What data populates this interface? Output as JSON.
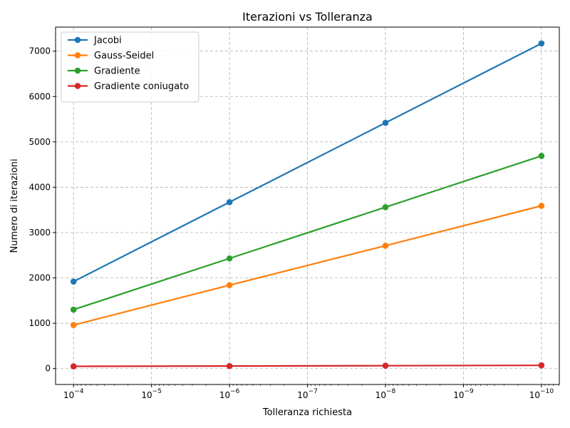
{
  "chart_data": {
    "type": "line",
    "title": "Iterazioni vs Tolleranza",
    "xlabel": "Tolleranza richiesta",
    "ylabel": "Numero di iterazioni",
    "x_scale": "log",
    "x_inverted": true,
    "x_tick_labels": [
      {
        "value": 0.0001,
        "base": "10",
        "exp": "−4"
      },
      {
        "value": 1e-05,
        "base": "10",
        "exp": "−5"
      },
      {
        "value": 1e-06,
        "base": "10",
        "exp": "−6"
      },
      {
        "value": 1e-07,
        "base": "10",
        "exp": "−7"
      },
      {
        "value": 1e-08,
        "base": "10",
        "exp": "−8"
      },
      {
        "value": 1e-09,
        "base": "10",
        "exp": "−9"
      },
      {
        "value": 1e-10,
        "base": "10",
        "exp": "−10"
      }
    ],
    "y_ticks": [
      0,
      1000,
      2000,
      3000,
      4000,
      5000,
      6000,
      7000
    ],
    "y_tick_labels": [
      "0",
      "1000",
      "2000",
      "3000",
      "4000",
      "5000",
      "6000",
      "7000"
    ],
    "xlim": [
      0.00017,
      5.9e-11
    ],
    "ylim": [
      -350,
      7530
    ],
    "grid": true,
    "legend_position": "top-left",
    "x": [
      0.0001,
      1e-06,
      1e-08,
      1e-10
    ],
    "series": [
      {
        "name": "Jacobi",
        "color": "#1f77b4",
        "values": [
          1920,
          3670,
          5420,
          7170
        ]
      },
      {
        "name": "Gauss-Seidel",
        "color": "#ff7f0e",
        "values": [
          960,
          1840,
          2710,
          3590
        ]
      },
      {
        "name": "Gradiente",
        "color": "#2ca02c",
        "values": [
          1300,
          2430,
          3560,
          4690
        ]
      },
      {
        "name": "Gradiente coniugato",
        "color": "#d62728",
        "values": [
          50,
          57,
          64,
          72
        ]
      }
    ]
  }
}
